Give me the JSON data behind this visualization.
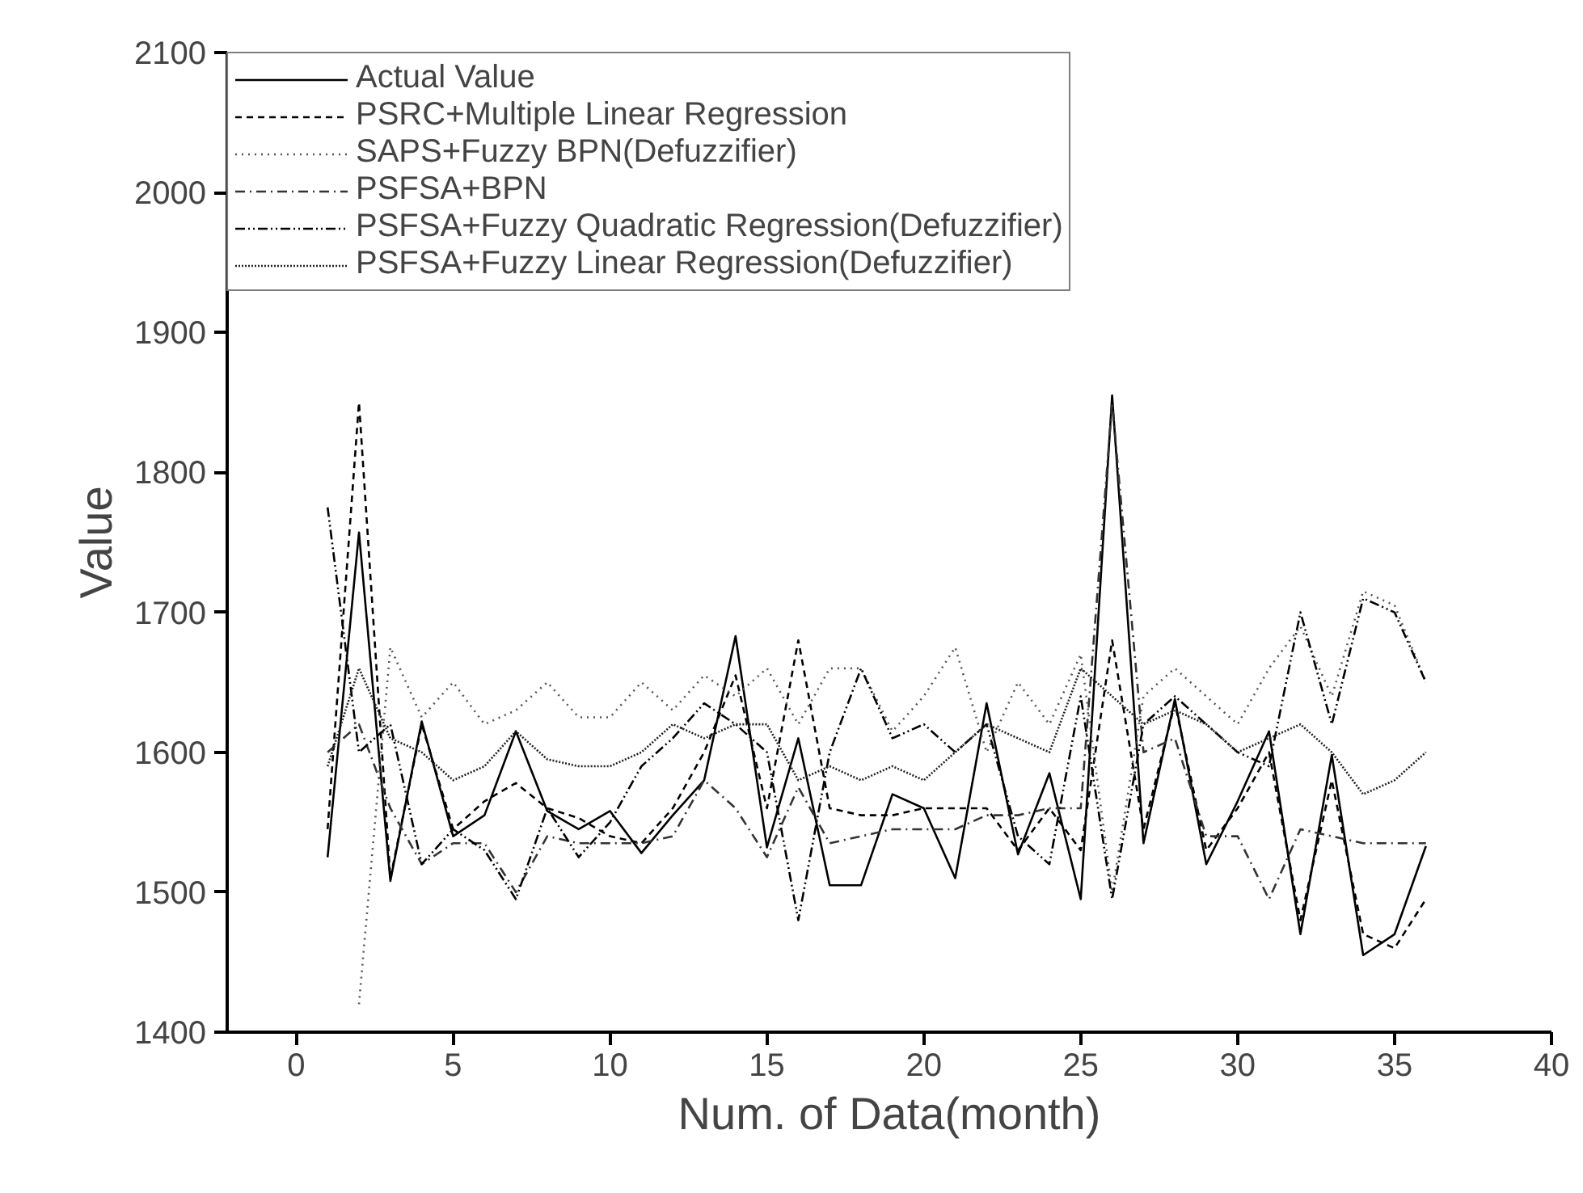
{
  "chart_data": {
    "type": "line",
    "xlabel": "Num. of Data(month)",
    "ylabel": "Value",
    "x": [
      1,
      2,
      3,
      4,
      5,
      6,
      7,
      8,
      9,
      10,
      11,
      12,
      13,
      14,
      15,
      16,
      17,
      18,
      19,
      20,
      21,
      22,
      23,
      24,
      25,
      26,
      27,
      28,
      29,
      30,
      31,
      32,
      33,
      34,
      35,
      36
    ],
    "xlim": [
      -2.2,
      40
    ],
    "xticks": [
      0,
      5,
      10,
      15,
      20,
      25,
      30,
      35,
      40
    ],
    "ylim": [
      1400,
      2100
    ],
    "yticks": [
      1400,
      1500,
      1600,
      1700,
      1800,
      1900,
      2000,
      2100
    ],
    "grid": false,
    "legend": "top left",
    "marker": "none",
    "series": [
      {
        "name": "Actual Value",
        "color": "#000000",
        "line_style": "solid",
        "values": [
          1525,
          1757,
          1508,
          1622,
          1540,
          1555,
          1615,
          1558,
          1545,
          1558,
          1528,
          1555,
          1580,
          1683,
          1532,
          1610,
          1505,
          1505,
          1570,
          1560,
          1510,
          1635,
          1527,
          1585,
          1495,
          1855,
          1535,
          1638,
          1520,
          1565,
          1615,
          1470,
          1598,
          1455,
          1470,
          1533
        ]
      },
      {
        "name": "PSRC+Multiple Linear Regression",
        "color": "#000000",
        "line_style": "dashed",
        "values": [
          1545,
          1850,
          1510,
          1620,
          1545,
          1565,
          1578,
          1560,
          1553,
          1540,
          1535,
          1560,
          1600,
          1655,
          1560,
          1680,
          1560,
          1555,
          1555,
          1560,
          1560,
          1560,
          1530,
          1560,
          1530,
          1680,
          1545,
          1635,
          1530,
          1560,
          1600,
          1480,
          1580,
          1470,
          1460,
          1495
        ]
      },
      {
        "name": "SAPS+Fuzzy BPN(Defuzzifier)",
        "color": "#555555",
        "line_style": "dotted",
        "values": [
          null,
          1420,
          1675,
          1625,
          1650,
          1620,
          1630,
          1650,
          1625,
          1625,
          1650,
          1630,
          1655,
          1640,
          1660,
          1620,
          1660,
          1660,
          1615,
          1640,
          1675,
          1600,
          1650,
          1620,
          1670,
          1500,
          1640,
          1660,
          1640,
          1620,
          1660,
          1690,
          1640,
          1715,
          1705,
          1650
        ]
      },
      {
        "name": "PSFSA+BPN",
        "color": "#333333",
        "line_style": "dashdot",
        "values": [
          1600,
          1620,
          1560,
          1520,
          1535,
          1535,
          1500,
          1540,
          1535,
          1535,
          1535,
          1540,
          1580,
          1560,
          1525,
          1575,
          1535,
          1540,
          1545,
          1545,
          1545,
          1555,
          1555,
          1560,
          1560,
          1850,
          1600,
          1610,
          1540,
          1540,
          1495,
          1545,
          1540,
          1535,
          1535,
          1535
        ]
      },
      {
        "name": "PSFSA+Fuzzy Quadratic Regression(Defuzzifier)",
        "color": "#000000",
        "line_style": "dashdotdot",
        "values": [
          1775,
          1600,
          1620,
          1520,
          1545,
          1530,
          1495,
          1560,
          1525,
          1550,
          1590,
          1610,
          1635,
          1620,
          1600,
          1480,
          1600,
          1660,
          1610,
          1620,
          1600,
          1620,
          1540,
          1520,
          1640,
          1495,
          1620,
          1640,
          1620,
          1600,
          1590,
          1700,
          1620,
          1710,
          1700,
          1650
        ]
      },
      {
        "name": "PSFSA+Fuzzy Linear Regression(Defuzzifier)",
        "color": "#222222",
        "line_style": "densedotted",
        "values": [
          1590,
          1660,
          1610,
          1600,
          1580,
          1590,
          1615,
          1595,
          1590,
          1590,
          1600,
          1620,
          1610,
          1620,
          1620,
          1580,
          1590,
          1580,
          1590,
          1580,
          1600,
          1620,
          1610,
          1600,
          1660,
          1640,
          1620,
          1630,
          1620,
          1600,
          1610,
          1620,
          1600,
          1570,
          1580,
          1600
        ]
      }
    ]
  }
}
